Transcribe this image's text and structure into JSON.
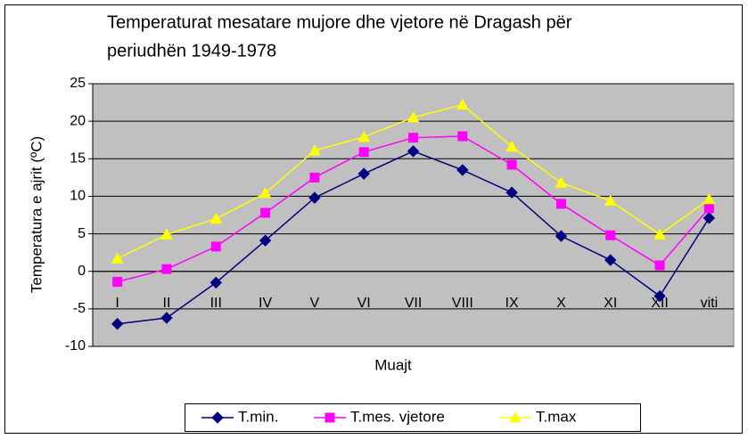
{
  "chart_data": {
    "type": "line",
    "title": [
      "Temperaturat mesatare mujore dhe vjetore në Dragash për",
      "periudhën 1949-1978"
    ],
    "x_label": "Muajt",
    "y_label": "Temperatura e ajrit (ºC)",
    "categories": [
      "I",
      "II",
      "III",
      "IV",
      "V",
      "VI",
      "VII",
      "VIII",
      "IX",
      "X",
      "XI",
      "XII",
      "viti"
    ],
    "series": [
      {
        "name": "T.min.",
        "color": "#000080",
        "marker": "diamond",
        "values": [
          -7,
          -6.2,
          -1.5,
          4.1,
          9.8,
          13,
          16,
          13.5,
          10.5,
          4.7,
          1.5,
          -3.3,
          7.1
        ]
      },
      {
        "name": "T.mes. vjetore",
        "color": "#FF00FF",
        "marker": "square",
        "values": [
          -1.4,
          0.3,
          3.3,
          7.8,
          12.5,
          15.9,
          17.8,
          18,
          14.2,
          9,
          4.8,
          0.8,
          8.4
        ]
      },
      {
        "name": "T.max",
        "color": "#FFFF00",
        "marker": "triangle",
        "values": [
          1.7,
          4.9,
          7,
          10.4,
          16.1,
          17.9,
          20.5,
          22.2,
          16.6,
          11.8,
          9.4,
          4.9,
          9.6
        ]
      }
    ],
    "ylim": [
      -10,
      25
    ],
    "yticks": [
      -10,
      -5,
      0,
      5,
      10,
      15,
      20,
      25
    ],
    "grid": true,
    "legend": "bottom"
  }
}
